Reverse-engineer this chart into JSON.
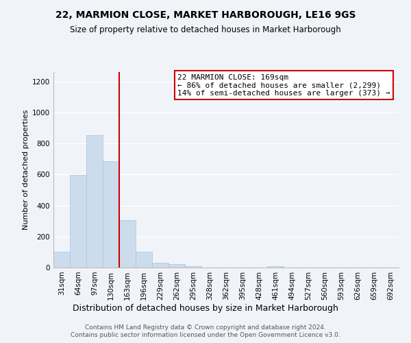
{
  "title": "22, MARMION CLOSE, MARKET HARBOROUGH, LE16 9GS",
  "subtitle": "Size of property relative to detached houses in Market Harborough",
  "xlabel": "Distribution of detached houses by size in Market Harborough",
  "ylabel": "Number of detached properties",
  "bar_color": "#ccdcec",
  "bar_edge_color": "#aac4dc",
  "categories": [
    "31sqm",
    "64sqm",
    "97sqm",
    "130sqm",
    "163sqm",
    "196sqm",
    "229sqm",
    "262sqm",
    "295sqm",
    "328sqm",
    "362sqm",
    "395sqm",
    "428sqm",
    "461sqm",
    "494sqm",
    "527sqm",
    "560sqm",
    "593sqm",
    "626sqm",
    "659sqm",
    "692sqm"
  ],
  "values": [
    100,
    595,
    855,
    685,
    305,
    100,
    32,
    20,
    10,
    0,
    0,
    0,
    0,
    10,
    0,
    0,
    0,
    0,
    0,
    0,
    0
  ],
  "ylim": [
    0,
    1260
  ],
  "yticks": [
    0,
    200,
    400,
    600,
    800,
    1000,
    1200
  ],
  "red_line_x": 3.5,
  "annotation_text": "22 MARMION CLOSE: 169sqm\n← 86% of detached houses are smaller (2,299)\n14% of semi-detached houses are larger (373) →",
  "annotation_box_color": "#ffffff",
  "annotation_box_edge": "#cc0000",
  "red_line_color": "#cc0000",
  "footer_line1": "Contains HM Land Registry data © Crown copyright and database right 2024.",
  "footer_line2": "Contains public sector information licensed under the Open Government Licence v3.0.",
  "background_color": "#f0f4f8",
  "grid_color": "#ffffff",
  "title_fontsize": 10,
  "subtitle_fontsize": 8.5,
  "xlabel_fontsize": 9,
  "ylabel_fontsize": 8,
  "tick_fontsize": 7.5,
  "footer_fontsize": 6.5,
  "annot_fontsize": 8
}
